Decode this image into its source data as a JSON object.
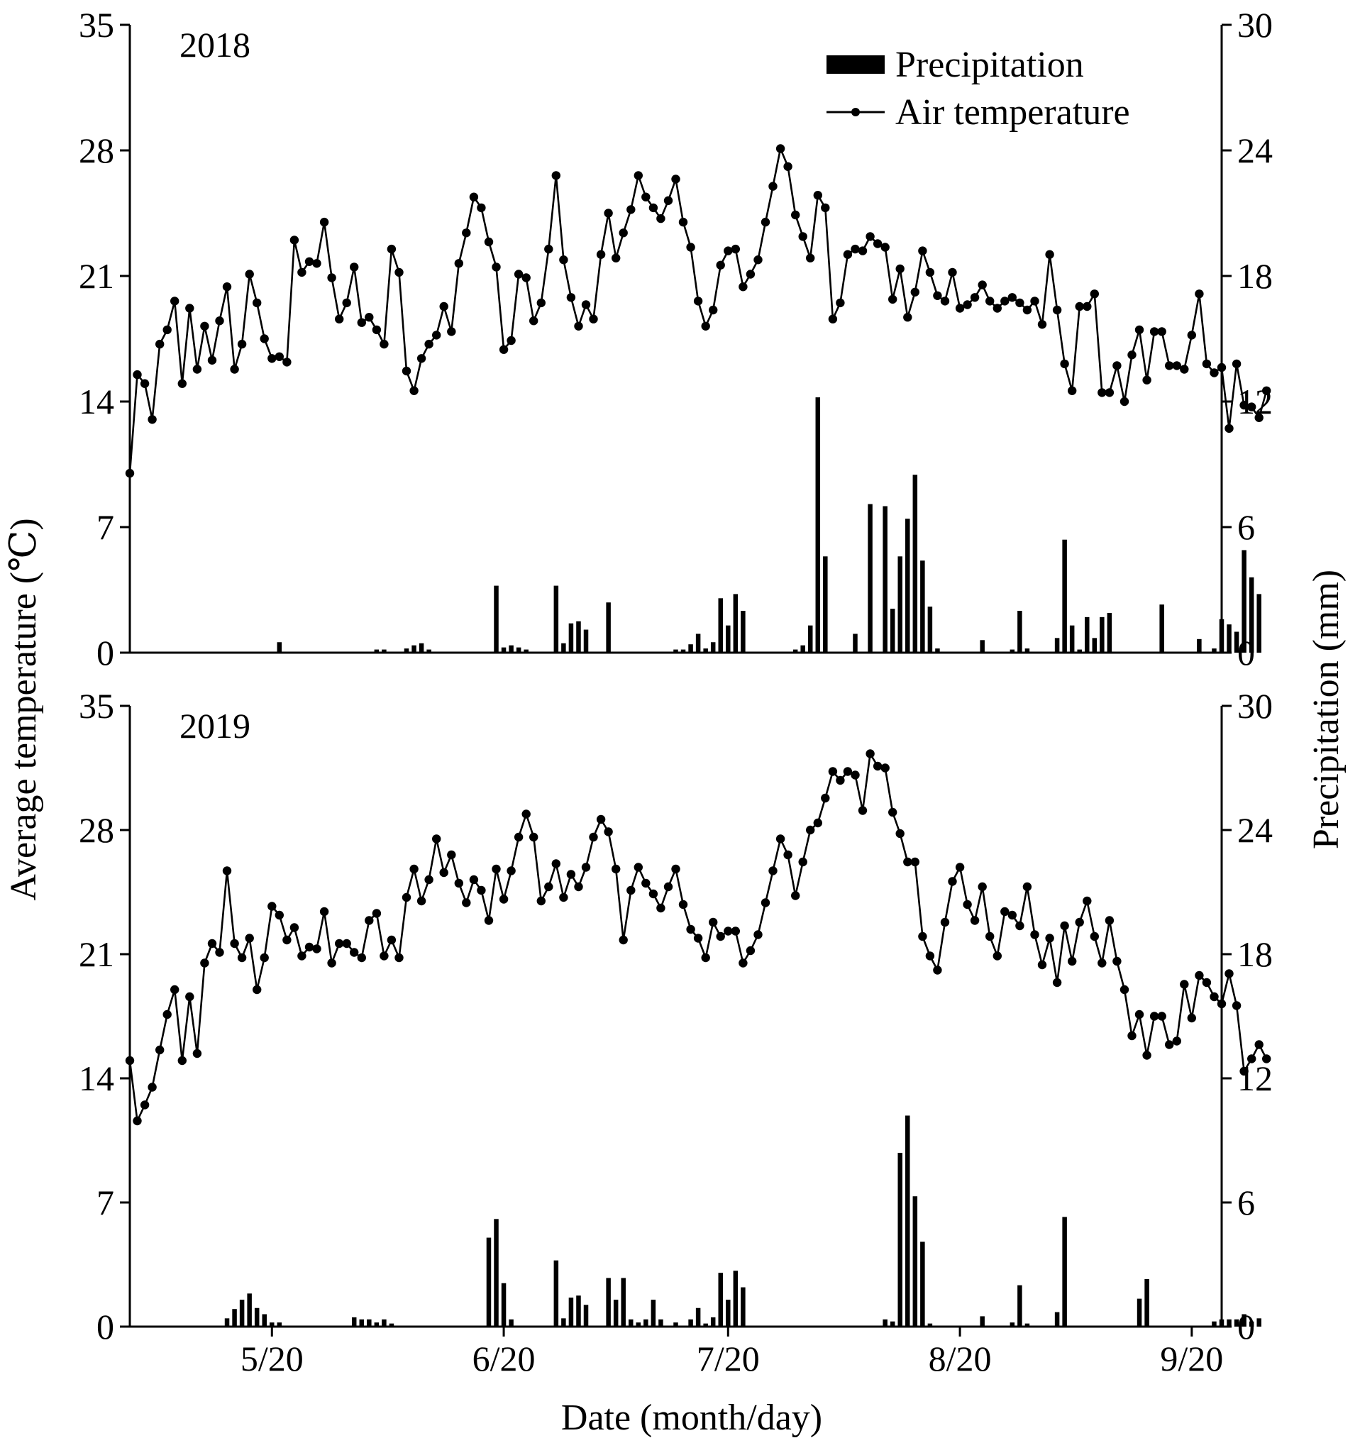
{
  "chart_data": {
    "type": "bar+line",
    "xlabel": "Date (month/day)",
    "ylabel_left": "Average temperature (℃)",
    "ylabel_right": "Precipitation (mm)",
    "x_tick_labels": [
      "5/20",
      "6/20",
      "7/20",
      "8/20",
      "9/20"
    ],
    "x_tick_days": [
      5,
      36,
      66,
      97,
      128
    ],
    "x_range_days": [
      -14,
      132
    ],
    "ylim_left": [
      0,
      35
    ],
    "yticks_left": [
      0,
      7,
      14,
      21,
      28,
      35
    ],
    "ylim_right": [
      0,
      30
    ],
    "yticks_right": [
      0,
      6,
      12,
      18,
      24,
      30
    ],
    "legend": {
      "position": "top-right",
      "entries": [
        {
          "label": "Precipitation",
          "kind": "bar"
        },
        {
          "label": "Air temperature",
          "kind": "line-dot"
        }
      ]
    },
    "panels": [
      {
        "label": "2018",
        "temperature_start_day": -14,
        "temperature": [
          10.0,
          15.5,
          15.0,
          13.0,
          17.2,
          18.0,
          19.6,
          15.0,
          19.2,
          15.8,
          18.2,
          16.3,
          18.5,
          20.4,
          15.8,
          17.2,
          21.1,
          19.5,
          17.5,
          16.4,
          16.5,
          16.2,
          23.0,
          21.2,
          21.8,
          21.7,
          24.0,
          20.9,
          18.6,
          19.5,
          21.5,
          18.4,
          18.7,
          18.0,
          17.2,
          22.5,
          21.2,
          15.7,
          14.6,
          16.4,
          17.2,
          17.7,
          19.3,
          17.9,
          21.7,
          23.4,
          25.4,
          24.8,
          22.9,
          21.5,
          16.9,
          17.4,
          21.1,
          20.9,
          18.5,
          19.5,
          22.5,
          26.6,
          21.9,
          19.8,
          18.2,
          19.4,
          18.6,
          22.2,
          24.5,
          22.0,
          23.4,
          24.7,
          26.6,
          25.4,
          24.8,
          24.2,
          25.2,
          26.4,
          24.0,
          22.6,
          19.6,
          18.2,
          19.1,
          21.6,
          22.4,
          22.5,
          20.4,
          21.1,
          21.9,
          24.0,
          26.0,
          28.1,
          27.1,
          24.4,
          23.2,
          22.0,
          25.5,
          24.8,
          18.6,
          19.5,
          22.2,
          22.5,
          22.4,
          23.2,
          22.8,
          22.6,
          19.7,
          21.4,
          18.7,
          20.1,
          22.4,
          21.2,
          19.9,
          19.6,
          21.2,
          19.2,
          19.4,
          19.8,
          20.5,
          19.6,
          19.2,
          19.6,
          19.8,
          19.5,
          19.1,
          19.6,
          18.3,
          22.2,
          19.1,
          16.1,
          14.6,
          19.3,
          19.3,
          20.0,
          14.5,
          14.5,
          16.0,
          14.0,
          16.6,
          18.0,
          15.2,
          17.9,
          17.9,
          16.0,
          16.0,
          15.8,
          17.7,
          20.0,
          16.1,
          15.6,
          15.9,
          12.5,
          16.1,
          13.8,
          13.7,
          13.1,
          14.6
        ],
        "precipitation": [
          {
            "day": 6,
            "mm": 0.5
          },
          {
            "day": 19,
            "mm": 0.15
          },
          {
            "day": 20,
            "mm": 0.15
          },
          {
            "day": 23,
            "mm": 0.2
          },
          {
            "day": 24,
            "mm": 0.35
          },
          {
            "day": 25,
            "mm": 0.45
          },
          {
            "day": 26,
            "mm": 0.15
          },
          {
            "day": 35,
            "mm": 3.2
          },
          {
            "day": 36,
            "mm": 0.25
          },
          {
            "day": 37,
            "mm": 0.35
          },
          {
            "day": 38,
            "mm": 0.25
          },
          {
            "day": 39,
            "mm": 0.15
          },
          {
            "day": 43,
            "mm": 3.2
          },
          {
            "day": 44,
            "mm": 0.45
          },
          {
            "day": 45,
            "mm": 1.4
          },
          {
            "day": 46,
            "mm": 1.5
          },
          {
            "day": 47,
            "mm": 1.1
          },
          {
            "day": 50,
            "mm": 2.4
          },
          {
            "day": 59,
            "mm": 0.15
          },
          {
            "day": 60,
            "mm": 0.15
          },
          {
            "day": 61,
            "mm": 0.4
          },
          {
            "day": 62,
            "mm": 0.9
          },
          {
            "day": 63,
            "mm": 0.2
          },
          {
            "day": 64,
            "mm": 0.5
          },
          {
            "day": 65,
            "mm": 2.6
          },
          {
            "day": 66,
            "mm": 1.3
          },
          {
            "day": 67,
            "mm": 2.8
          },
          {
            "day": 68,
            "mm": 2.0
          },
          {
            "day": 75,
            "mm": 0.15
          },
          {
            "day": 76,
            "mm": 0.35
          },
          {
            "day": 77,
            "mm": 1.3
          },
          {
            "day": 78,
            "mm": 12.2
          },
          {
            "day": 79,
            "mm": 4.6
          },
          {
            "day": 83,
            "mm": 0.9
          },
          {
            "day": 85,
            "mm": 7.1
          },
          {
            "day": 87,
            "mm": 7.0
          },
          {
            "day": 88,
            "mm": 2.1
          },
          {
            "day": 89,
            "mm": 4.6
          },
          {
            "day": 90,
            "mm": 6.4
          },
          {
            "day": 91,
            "mm": 8.5
          },
          {
            "day": 92,
            "mm": 4.4
          },
          {
            "day": 93,
            "mm": 2.2
          },
          {
            "day": 94,
            "mm": 0.2
          },
          {
            "day": 100,
            "mm": 0.6
          },
          {
            "day": 104,
            "mm": 0.15
          },
          {
            "day": 105,
            "mm": 2.0
          },
          {
            "day": 106,
            "mm": 0.2
          },
          {
            "day": 110,
            "mm": 0.7
          },
          {
            "day": 111,
            "mm": 5.4
          },
          {
            "day": 112,
            "mm": 1.3
          },
          {
            "day": 113,
            "mm": 0.15
          },
          {
            "day": 114,
            "mm": 1.7
          },
          {
            "day": 115,
            "mm": 0.7
          },
          {
            "day": 116,
            "mm": 1.7
          },
          {
            "day": 117,
            "mm": 1.9
          },
          {
            "day": 124,
            "mm": 2.3
          },
          {
            "day": 129,
            "mm": 0.65
          },
          {
            "day": 131,
            "mm": 0.2
          },
          {
            "day": 132,
            "mm": 1.6
          },
          {
            "day": 133,
            "mm": 1.35
          },
          {
            "day": 134,
            "mm": 1.0
          },
          {
            "day": 135,
            "mm": 4.9
          },
          {
            "day": 136,
            "mm": 3.6
          },
          {
            "day": 137,
            "mm": 2.8
          }
        ]
      },
      {
        "label": "2019",
        "temperature_start_day": -14,
        "temperature": [
          15.0,
          11.6,
          12.5,
          13.5,
          15.6,
          17.6,
          19.0,
          15.0,
          18.6,
          15.4,
          20.5,
          21.6,
          21.1,
          25.7,
          21.6,
          20.8,
          21.9,
          19.0,
          20.8,
          23.7,
          23.2,
          21.8,
          22.5,
          20.9,
          21.4,
          21.3,
          23.4,
          20.5,
          21.6,
          21.6,
          21.1,
          20.8,
          22.9,
          23.3,
          20.9,
          21.8,
          20.8,
          24.2,
          25.8,
          24.0,
          25.2,
          27.5,
          25.6,
          26.6,
          25.0,
          23.9,
          25.2,
          24.6,
          22.9,
          25.8,
          24.1,
          25.7,
          27.6,
          28.9,
          27.6,
          24.0,
          24.8,
          26.1,
          24.2,
          25.5,
          24.8,
          25.9,
          27.6,
          28.6,
          27.9,
          25.8,
          21.8,
          24.6,
          25.9,
          25.0,
          24.4,
          23.6,
          24.8,
          25.8,
          23.8,
          22.4,
          21.9,
          20.8,
          22.8,
          22.0,
          22.3,
          22.3,
          20.5,
          21.2,
          22.1,
          23.9,
          25.7,
          27.5,
          26.6,
          24.3,
          26.2,
          28.0,
          28.4,
          29.8,
          31.3,
          30.8,
          31.3,
          31.1,
          29.1,
          32.3,
          31.6,
          31.5,
          29.0,
          27.8,
          26.2,
          26.2,
          22.0,
          20.9,
          20.1,
          22.8,
          25.1,
          25.9,
          23.8,
          22.9,
          24.8,
          22.0,
          20.9,
          23.4,
          23.2,
          22.6,
          24.8,
          22.1,
          20.4,
          21.9,
          19.4,
          22.6,
          20.6,
          22.8,
          24.0,
          22.0,
          20.5,
          22.9,
          20.6,
          19.0,
          16.4,
          17.6,
          15.3,
          17.5,
          17.5,
          15.9,
          16.1,
          19.3,
          17.4,
          19.8,
          19.4,
          18.6,
          18.2,
          19.9,
          18.1,
          14.4,
          15.1,
          15.9,
          15.1
        ],
        "precipitation": [
          {
            "day": -1,
            "mm": 0.4
          },
          {
            "day": 0,
            "mm": 0.85
          },
          {
            "day": 1,
            "mm": 1.3
          },
          {
            "day": 2,
            "mm": 1.6
          },
          {
            "day": 3,
            "mm": 0.9
          },
          {
            "day": 4,
            "mm": 0.6
          },
          {
            "day": 5,
            "mm": 0.2
          },
          {
            "day": 6,
            "mm": 0.2
          },
          {
            "day": 16,
            "mm": 0.45
          },
          {
            "day": 17,
            "mm": 0.35
          },
          {
            "day": 18,
            "mm": 0.35
          },
          {
            "day": 19,
            "mm": 0.2
          },
          {
            "day": 20,
            "mm": 0.35
          },
          {
            "day": 21,
            "mm": 0.15
          },
          {
            "day": 34,
            "mm": 4.3
          },
          {
            "day": 35,
            "mm": 5.2
          },
          {
            "day": 36,
            "mm": 2.1
          },
          {
            "day": 37,
            "mm": 0.35
          },
          {
            "day": 43,
            "mm": 3.2
          },
          {
            "day": 44,
            "mm": 0.4
          },
          {
            "day": 45,
            "mm": 1.4
          },
          {
            "day": 46,
            "mm": 1.5
          },
          {
            "day": 47,
            "mm": 1.05
          },
          {
            "day": 50,
            "mm": 2.35
          },
          {
            "day": 51,
            "mm": 1.3
          },
          {
            "day": 52,
            "mm": 2.35
          },
          {
            "day": 53,
            "mm": 0.35
          },
          {
            "day": 54,
            "mm": 0.2
          },
          {
            "day": 55,
            "mm": 0.35
          },
          {
            "day": 56,
            "mm": 1.3
          },
          {
            "day": 57,
            "mm": 0.35
          },
          {
            "day": 59,
            "mm": 0.2
          },
          {
            "day": 61,
            "mm": 0.35
          },
          {
            "day": 62,
            "mm": 0.9
          },
          {
            "day": 63,
            "mm": 0.15
          },
          {
            "day": 64,
            "mm": 0.45
          },
          {
            "day": 65,
            "mm": 2.6
          },
          {
            "day": 66,
            "mm": 1.3
          },
          {
            "day": 67,
            "mm": 2.7
          },
          {
            "day": 68,
            "mm": 1.9
          },
          {
            "day": 87,
            "mm": 0.35
          },
          {
            "day": 88,
            "mm": 0.25
          },
          {
            "day": 89,
            "mm": 8.4
          },
          {
            "day": 90,
            "mm": 10.2
          },
          {
            "day": 91,
            "mm": 6.3
          },
          {
            "day": 92,
            "mm": 4.1
          },
          {
            "day": 93,
            "mm": 0.15
          },
          {
            "day": 100,
            "mm": 0.5
          },
          {
            "day": 104,
            "mm": 0.2
          },
          {
            "day": 105,
            "mm": 2.0
          },
          {
            "day": 106,
            "mm": 0.15
          },
          {
            "day": 110,
            "mm": 0.7
          },
          {
            "day": 111,
            "mm": 5.3
          },
          {
            "day": 121,
            "mm": 1.35
          },
          {
            "day": 122,
            "mm": 2.3
          },
          {
            "day": 131,
            "mm": 0.25
          },
          {
            "day": 132,
            "mm": 0.35
          },
          {
            "day": 133,
            "mm": 0.35
          },
          {
            "day": 134,
            "mm": 0.35
          },
          {
            "day": 135,
            "mm": 0.6
          },
          {
            "day": 136,
            "mm": 0.25
          },
          {
            "day": 137,
            "mm": 0.4
          }
        ]
      }
    ]
  }
}
